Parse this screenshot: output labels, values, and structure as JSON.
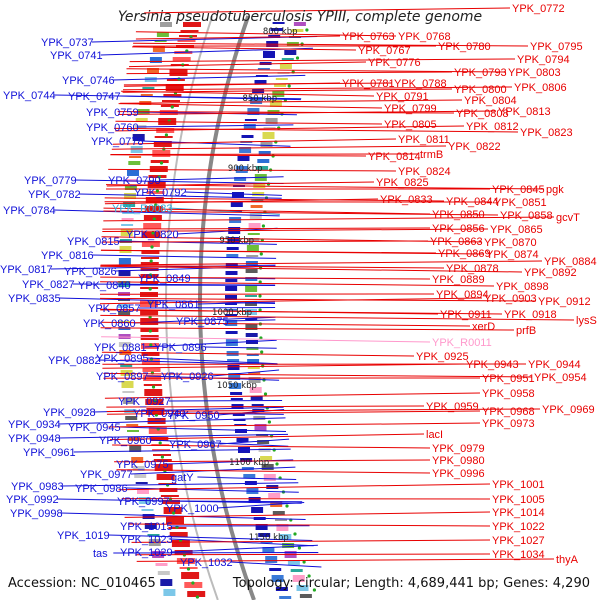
{
  "title": "Yersinia pseudotuberculosis YPIII, complete genome",
  "footer": {
    "accession": "Accession: NC_010465",
    "summary": "Topology: circular; Length: 4,689,441 bp; Genes: 4,290"
  },
  "colors": {
    "left_label": "#1010d8",
    "right_label": "#e80000",
    "rna_label": "#33aadd",
    "pink_label": "#ff99cc",
    "backbone": "#888888"
  },
  "scale_labels": [
    "800 kbp",
    "850 kbp",
    "900 kbp",
    "950 kbp",
    "1000 kbp",
    "1050 kbp",
    "1100 kbp",
    "1150 kbp"
  ],
  "left_genes": [
    "YPK_0737",
    "YPK_0741",
    "YPK_0746",
    "YPK_0744",
    "YPK_0747",
    "YPK_0759",
    "YPK_0760",
    "YPK_0778",
    "YPK_0779",
    "YPK_0790",
    "YPK_0782",
    "YPK_0792",
    "YPK_0784",
    "YPK_R0083",
    "YPK_0820",
    "YPK_0815",
    "YPK_0816",
    "YPK_0817",
    "YPK_0826",
    "YPK_0827",
    "YPK_0840",
    "YPK_0849",
    "YPK_0835",
    "YPK_0857",
    "YPK_0861",
    "YPK_0860",
    "YPK_0875",
    "YPK_0881",
    "YPK_0896",
    "YPK_0882",
    "YPK_0895",
    "YPK_0897",
    "YPK_0926",
    "YPK_0927",
    "YPK_0928",
    "YPK_0940",
    "YPK_0950",
    "YPK_0934",
    "YPK_0945",
    "YPK_0948",
    "YPK_0960",
    "YPK_0967",
    "YPK_0961",
    "YPK_0975",
    "YPK_0977",
    "gatY",
    "YPK_0983",
    "YPK_0986",
    "YPK_0992",
    "YPK_0997",
    "YPK_0998",
    "YPK_1000",
    "YPK_1015",
    "YPK_1019",
    "YPK_1023",
    "tas",
    "YPK_1029",
    "YPK_1032"
  ],
  "right_genes": [
    "YPK_0772",
    "YPK_0763",
    "YPK_0768",
    "YPK_0767",
    "YPK_0780",
    "YPK_0795",
    "YPK_0776",
    "YPK_0794",
    "YPK_0793",
    "YPK_0803",
    "YPK_0781",
    "YPK_0788",
    "YPK_0806",
    "YPK_0791",
    "YPK_0800",
    "YPK_0804",
    "YPK_0799",
    "YPK_0808",
    "YPK_0813",
    "YPK_0805",
    "YPK_0812",
    "YPK_0823",
    "YPK_0811",
    "YPK_0822",
    "YPK_0814",
    "trmB",
    "YPK_0824",
    "YPK_0825",
    "YPK_0845",
    "pgk",
    "YPK_0833",
    "YPK_0844",
    "YPK_0851",
    "YPK_0850",
    "YPK_0858",
    "gcvT",
    "YPK_0856",
    "YPK_0865",
    "YPK_0863",
    "YPK_0870",
    "YPK_0869",
    "YPK_0874",
    "YPK_0884",
    "YPK_0878",
    "YPK_0892",
    "YPK_0889",
    "YPK_0898",
    "YPK_0894",
    "YPK_0903",
    "YPK_0912",
    "YPK_0911",
    "YPK_0918",
    "lysS",
    "xerD",
    "prfB",
    "YPK_R0011",
    "YPK_0925",
    "YPK_0943",
    "YPK_0944",
    "YPK_0951",
    "YPK_0954",
    "YPK_0958",
    "YPK_0959",
    "YPK_0968",
    "YPK_0969",
    "YPK_0973",
    "lacI",
    "YPK_0979",
    "YPK_0980",
    "YPK_0996",
    "YPK_1001",
    "YPK_1005",
    "YPK_1014",
    "YPK_1022",
    "YPK_1027",
    "YPK_1034",
    "thyA"
  ]
}
